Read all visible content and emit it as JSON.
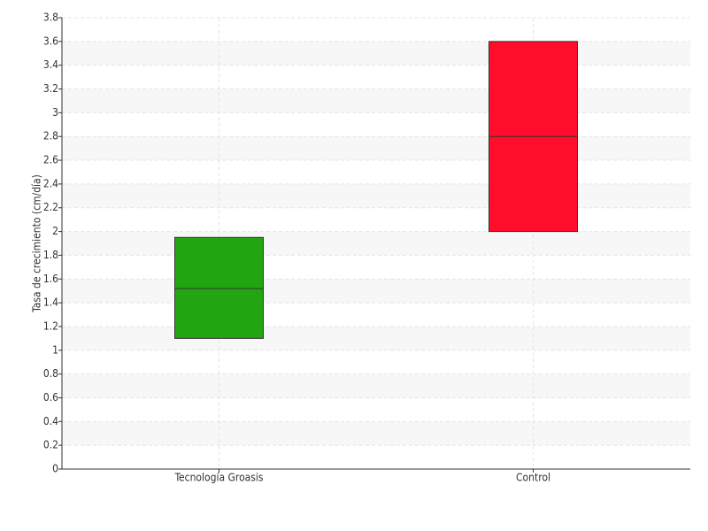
{
  "chart_data": {
    "type": "box",
    "y_label": "Tasa de crecimiento (cm/día)",
    "categories": [
      "Tecnología Groasis",
      "Control"
    ],
    "low": [
      1.1,
      2.0
    ],
    "median": [
      1.52,
      2.8
    ],
    "high": [
      1.95,
      3.6
    ],
    "colors": [
      "#22a511",
      "#ff0d2a"
    ],
    "ylim": [
      0,
      3.8
    ],
    "yticks": [
      0,
      0.2,
      0.4,
      0.6,
      0.8,
      1,
      1.2,
      1.4,
      1.6,
      1.8,
      2,
      2.2,
      2.4,
      2.6,
      2.8,
      3,
      3.2,
      3.4,
      3.6,
      3.8
    ],
    "grid": true
  }
}
